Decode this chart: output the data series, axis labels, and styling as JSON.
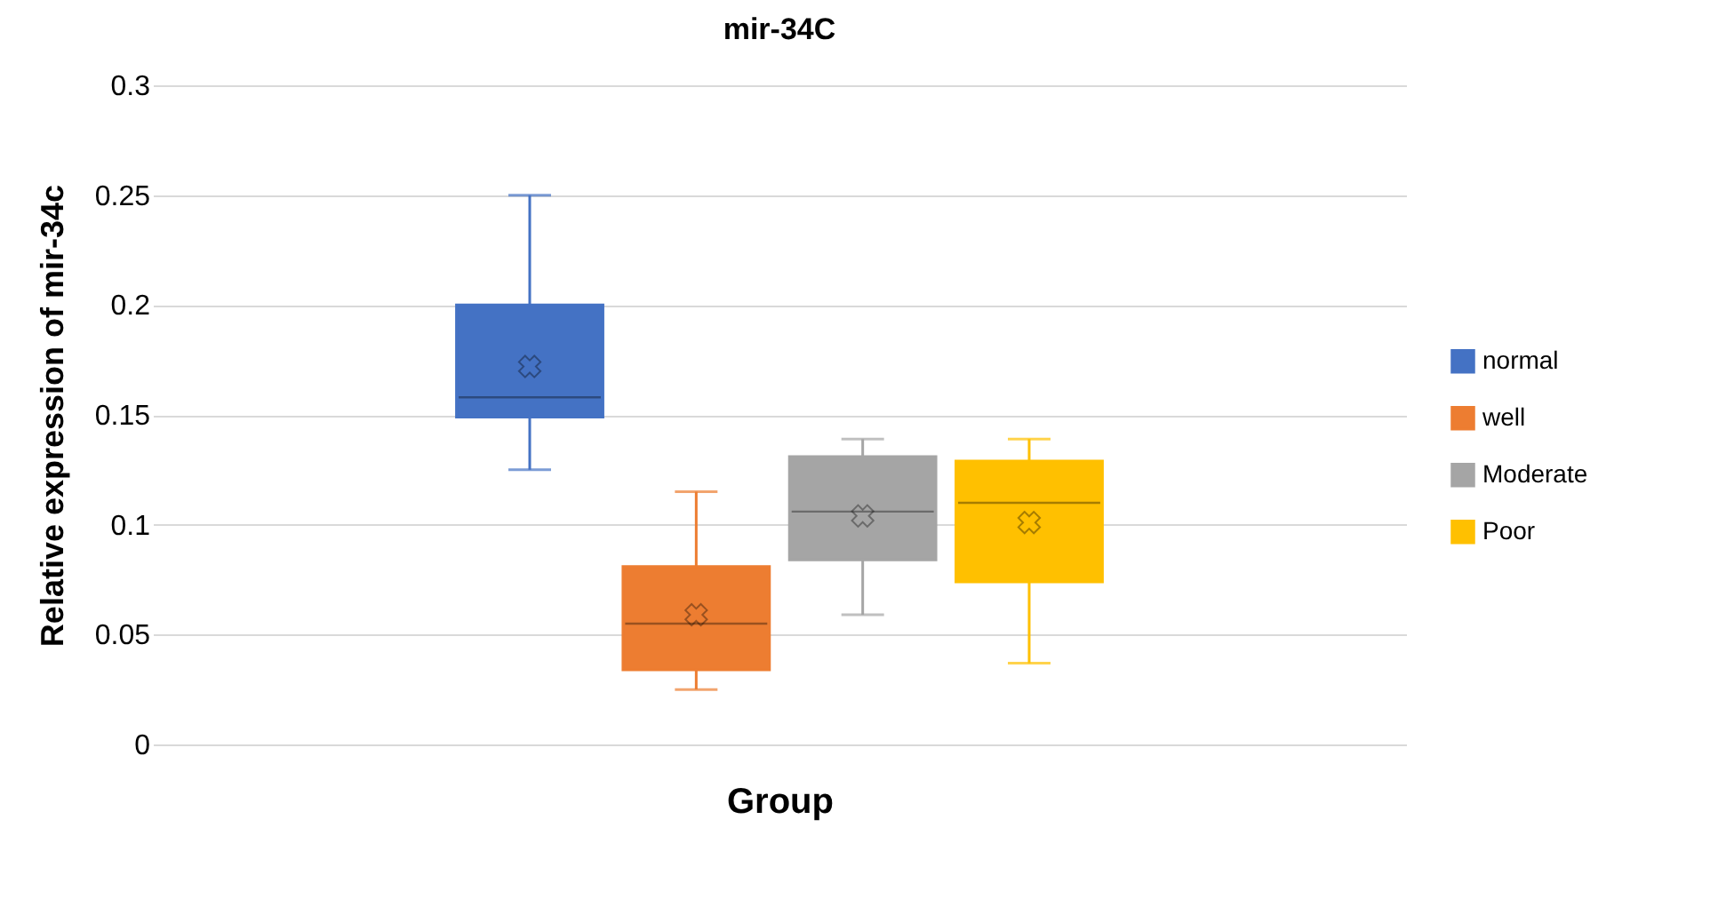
{
  "chart_data": {
    "type": "box",
    "title": "mir-34C",
    "xlabel": "Group",
    "ylabel": "Relative expression of mir-34c",
    "categories": [
      null
    ],
    "series": [
      {
        "name": "normal",
        "color": "#4472c4",
        "boxes": [
          {
            "low": 0.125,
            "q1": 0.149,
            "median": 0.158,
            "q3": 0.2,
            "high": 0.25,
            "mean": 0.172
          }
        ]
      },
      {
        "name": "well",
        "color": "#ed7d31",
        "boxes": [
          {
            "low": 0.025,
            "q1": 0.034,
            "median": 0.055,
            "q3": 0.081,
            "high": 0.115,
            "mean": 0.059
          }
        ]
      },
      {
        "name": "Moderate",
        "color": "#a5a5a5",
        "boxes": [
          {
            "low": 0.059,
            "q1": 0.084,
            "median": 0.106,
            "q3": 0.131,
            "high": 0.139,
            "mean": 0.104
          }
        ]
      },
      {
        "name": "Poor",
        "color": "#ffc000",
        "boxes": [
          {
            "low": 0.037,
            "q1": 0.074,
            "median": 0.11,
            "q3": 0.129,
            "high": 0.139,
            "mean": 0.101
          }
        ]
      }
    ],
    "ylim": [
      0,
      0.3
    ],
    "yticks": [
      0,
      0.05,
      0.1,
      0.15,
      0.2,
      0.25,
      0.3
    ],
    "grid": "y",
    "legend": "right"
  }
}
